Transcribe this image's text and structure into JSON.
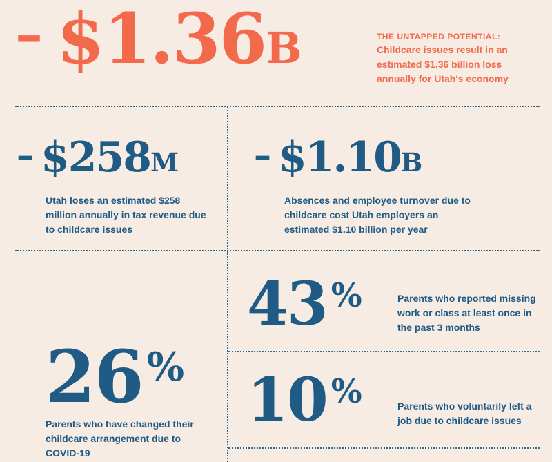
{
  "top": {
    "dash": "–",
    "value": "$1.36",
    "suffix": "B",
    "heading": "THE UNTAPPED POTENTIAL:",
    "text": "Childcare issues result in an estimated $1.36 billion loss annually for Utah's economy"
  },
  "tax": {
    "dash": "–",
    "value": "$258",
    "suffix": "M",
    "text": "Utah loses an estimated $258 million annually in tax revenue due to childcare issues"
  },
  "absences": {
    "dash": "–",
    "value": "$1.10",
    "suffix": "B",
    "text": "Absences and employee turnover due to childcare cost Utah employers an estimated $1.10 billion per year"
  },
  "stat43": {
    "value": "43",
    "unit": "%",
    "text": "Parents who reported missing work or class at least once in the past 3 months"
  },
  "stat26": {
    "value": "26",
    "unit": "%",
    "text": "Parents who have changed their childcare arrangement due to COVID-19"
  },
  "stat10": {
    "value": "10",
    "unit": "%",
    "text": "Parents who voluntarily left a job due to childcare issues"
  },
  "colors": {
    "background": "#f6ece3",
    "accent": "#f26a4b",
    "primary": "#1f5b85"
  }
}
